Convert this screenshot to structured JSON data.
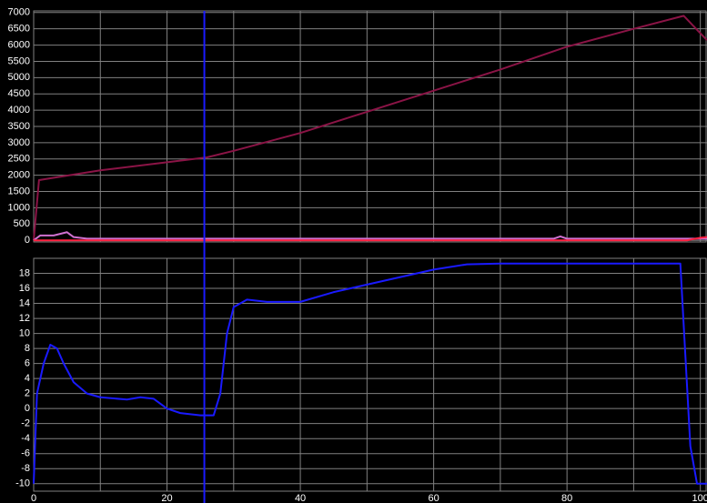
{
  "chart_data": [
    {
      "type": "line",
      "xlim": [
        0,
        101
      ],
      "ylim": [
        -50,
        7050
      ],
      "yticks": [
        0,
        500,
        1000,
        1500,
        2000,
        2500,
        3000,
        3500,
        4000,
        4500,
        5000,
        5500,
        6000,
        6500,
        7000
      ],
      "grid": true,
      "cursor_x": 25.6,
      "cursor_color": "#1a1aff",
      "series": [
        {
          "color": "#8b1446",
          "x": [
            0,
            0.8,
            10,
            20,
            26,
            30,
            40,
            50,
            60,
            70,
            80,
            90,
            97.5,
            101
          ],
          "values": [
            0,
            1850,
            2150,
            2400,
            2550,
            2750,
            3300,
            3950,
            4600,
            5250,
            5950,
            6500,
            6900,
            6150
          ]
        },
        {
          "color": "#d070d0",
          "x": [
            0,
            1,
            3,
            5,
            6,
            8,
            15,
            78,
            79,
            80,
            101
          ],
          "values": [
            0,
            150,
            150,
            250,
            100,
            50,
            50,
            50,
            120,
            50,
            50
          ]
        },
        {
          "color": "#ff2040",
          "x": [
            0,
            98,
            100,
            101
          ],
          "values": [
            0,
            0,
            80,
            100
          ]
        }
      ]
    },
    {
      "type": "line",
      "xlim": [
        0,
        101
      ],
      "ylim": [
        -11,
        20
      ],
      "xticks": [
        0,
        20,
        40,
        60,
        80,
        100
      ],
      "xminor": [
        10,
        30,
        50,
        70,
        90
      ],
      "yticks": [
        -10,
        -8,
        -6,
        -4,
        -2,
        0,
        2,
        4,
        6,
        8,
        10,
        12,
        14,
        16,
        18
      ],
      "grid": true,
      "series": [
        {
          "color": "#1a1aff",
          "x": [
            0,
            0.5,
            1.5,
            2.5,
            3.5,
            4.5,
            6,
            8,
            10,
            14,
            16,
            18,
            20,
            22,
            25,
            27,
            28,
            29,
            30,
            32,
            35,
            40,
            45,
            50,
            55,
            60,
            65,
            70,
            75,
            97,
            98.5,
            99.5,
            101
          ],
          "values": [
            -10,
            2,
            6,
            8.5,
            8,
            6,
            3.5,
            2,
            1.5,
            1.2,
            1.5,
            1.3,
            0,
            -0.6,
            -0.9,
            -0.9,
            2,
            10,
            13.5,
            14.5,
            14.2,
            14.2,
            15.5,
            16.5,
            17.5,
            18.5,
            19.2,
            19.3,
            19.3,
            19.3,
            -5,
            -10,
            -10
          ]
        }
      ]
    }
  ]
}
